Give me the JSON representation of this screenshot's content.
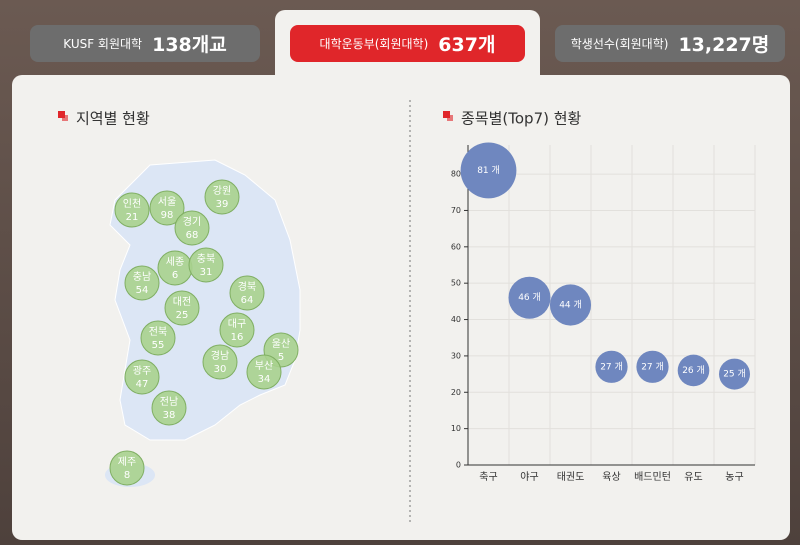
{
  "tabs": [
    {
      "label": "KUSF 회원대학",
      "value": "138개교"
    },
    {
      "label": "대학운동부(회원대학)",
      "value": "637개"
    },
    {
      "label": "학생선수(회원대학)",
      "value": "13,227명"
    }
  ],
  "map": {
    "title": "지역별 현황",
    "regions": [
      {
        "name": "인천",
        "value": 21
      },
      {
        "name": "서울",
        "value": 98
      },
      {
        "name": "강원",
        "value": 39
      },
      {
        "name": "경기",
        "value": 68
      },
      {
        "name": "세종",
        "value": 6
      },
      {
        "name": "충북",
        "value": 31
      },
      {
        "name": "충남",
        "value": 54
      },
      {
        "name": "대전",
        "value": 25
      },
      {
        "name": "경북",
        "value": 64
      },
      {
        "name": "전북",
        "value": 55
      },
      {
        "name": "대구",
        "value": 16
      },
      {
        "name": "울산",
        "value": 5
      },
      {
        "name": "경남",
        "value": 30
      },
      {
        "name": "부산",
        "value": 34
      },
      {
        "name": "광주",
        "value": 47
      },
      {
        "name": "전남",
        "value": 38
      },
      {
        "name": "제주",
        "value": 8
      }
    ]
  },
  "chart_data": {
    "type": "bubble",
    "title": "종목별(Top7) 현황",
    "categories": [
      "축구",
      "야구",
      "태권도",
      "육상",
      "배드민턴",
      "유도",
      "농구"
    ],
    "values": [
      81,
      46,
      44,
      27,
      27,
      26,
      25
    ],
    "value_labels": [
      "81 개",
      "46 개",
      "44 개",
      "27 개",
      "27 개",
      "26 개",
      "25 개"
    ],
    "color": "#6f87bf",
    "ylim": [
      0,
      88
    ],
    "yticks": [
      0,
      10,
      20,
      30,
      40,
      50,
      60,
      70,
      80
    ],
    "grid": true
  }
}
